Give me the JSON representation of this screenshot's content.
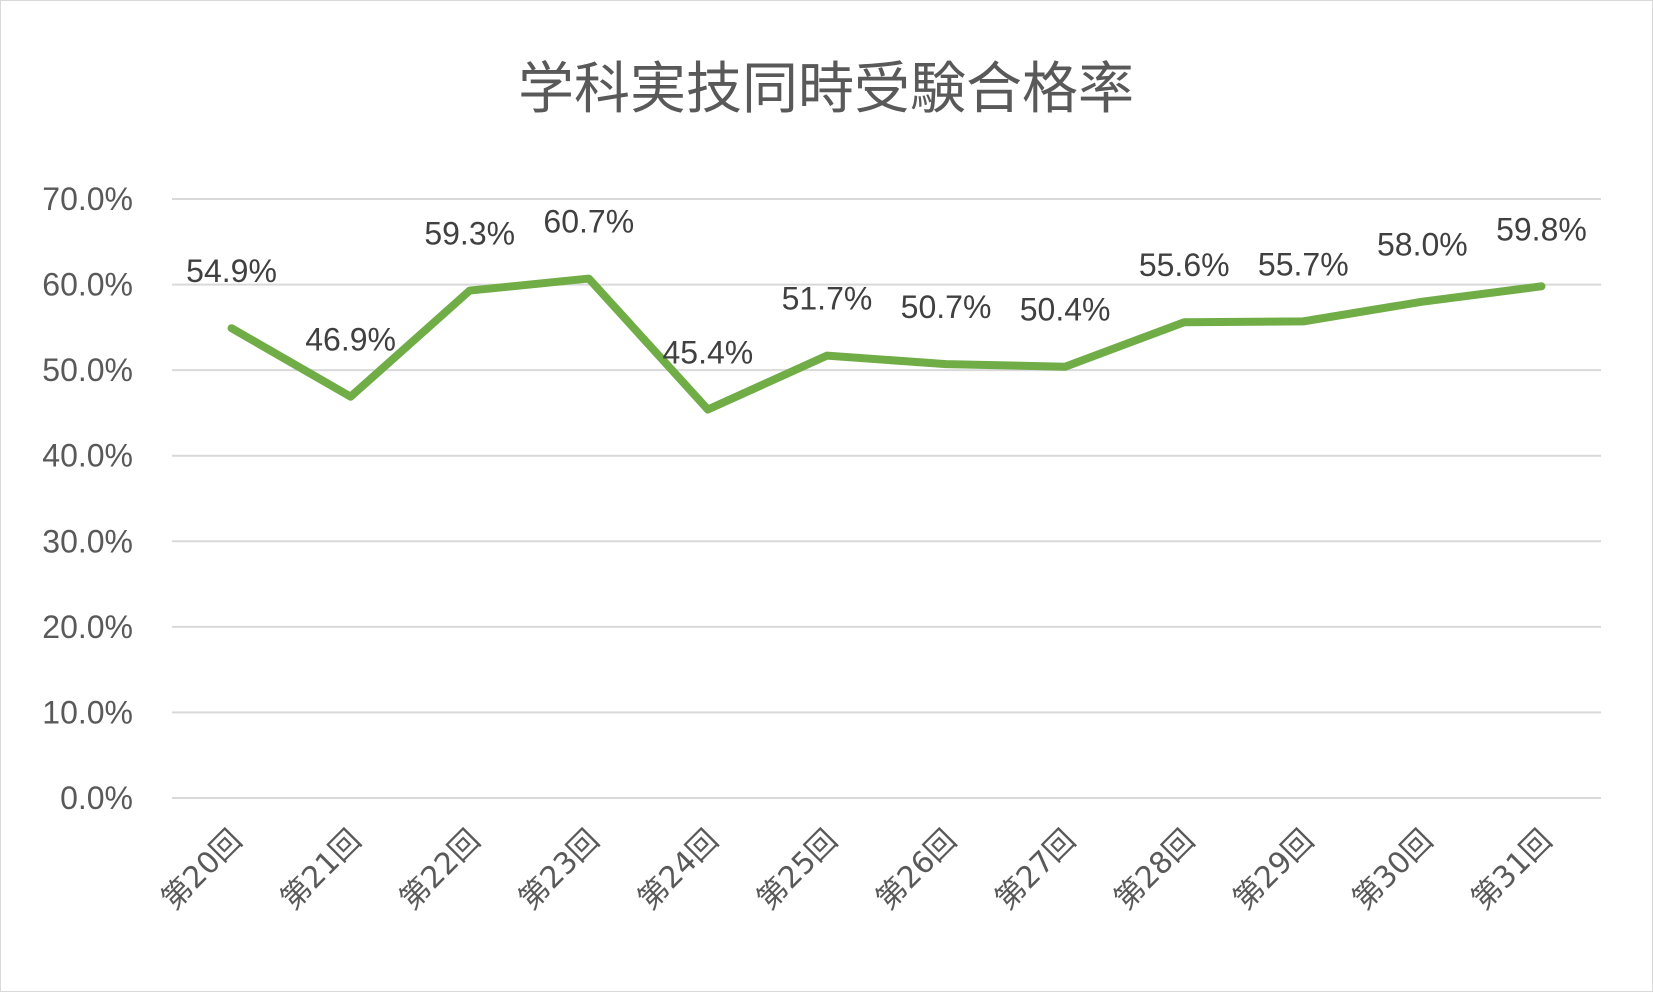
{
  "chart_data": {
    "type": "line",
    "title": "学科実技同時受験合格率",
    "xlabel": "",
    "ylabel": "",
    "categories": [
      "第20回",
      "第21回",
      "第22回",
      "第23回",
      "第24回",
      "第25回",
      "第26回",
      "第27回",
      "第28回",
      "第29回",
      "第30回",
      "第31回"
    ],
    "series": [
      {
        "values": [
          54.9,
          46.9,
          59.3,
          60.7,
          45.4,
          51.7,
          50.7,
          50.4,
          55.6,
          55.7,
          58.0,
          59.8
        ],
        "labels": [
          "54.9%",
          "46.9%",
          "59.3%",
          "60.7%",
          "45.4%",
          "51.7%",
          "50.7%",
          "50.4%",
          "55.6%",
          "55.7%",
          "58.0%",
          "59.8%"
        ],
        "color": "#70ad47"
      }
    ],
    "ylim": [
      0,
      70
    ],
    "yticks": [
      0,
      10,
      20,
      30,
      40,
      50,
      60,
      70
    ],
    "ytick_labels": [
      "0.0%",
      "10.0%",
      "20.0%",
      "30.0%",
      "40.0%",
      "50.0%",
      "60.0%",
      "70.0%"
    ],
    "grid": true,
    "legend": "none"
  }
}
